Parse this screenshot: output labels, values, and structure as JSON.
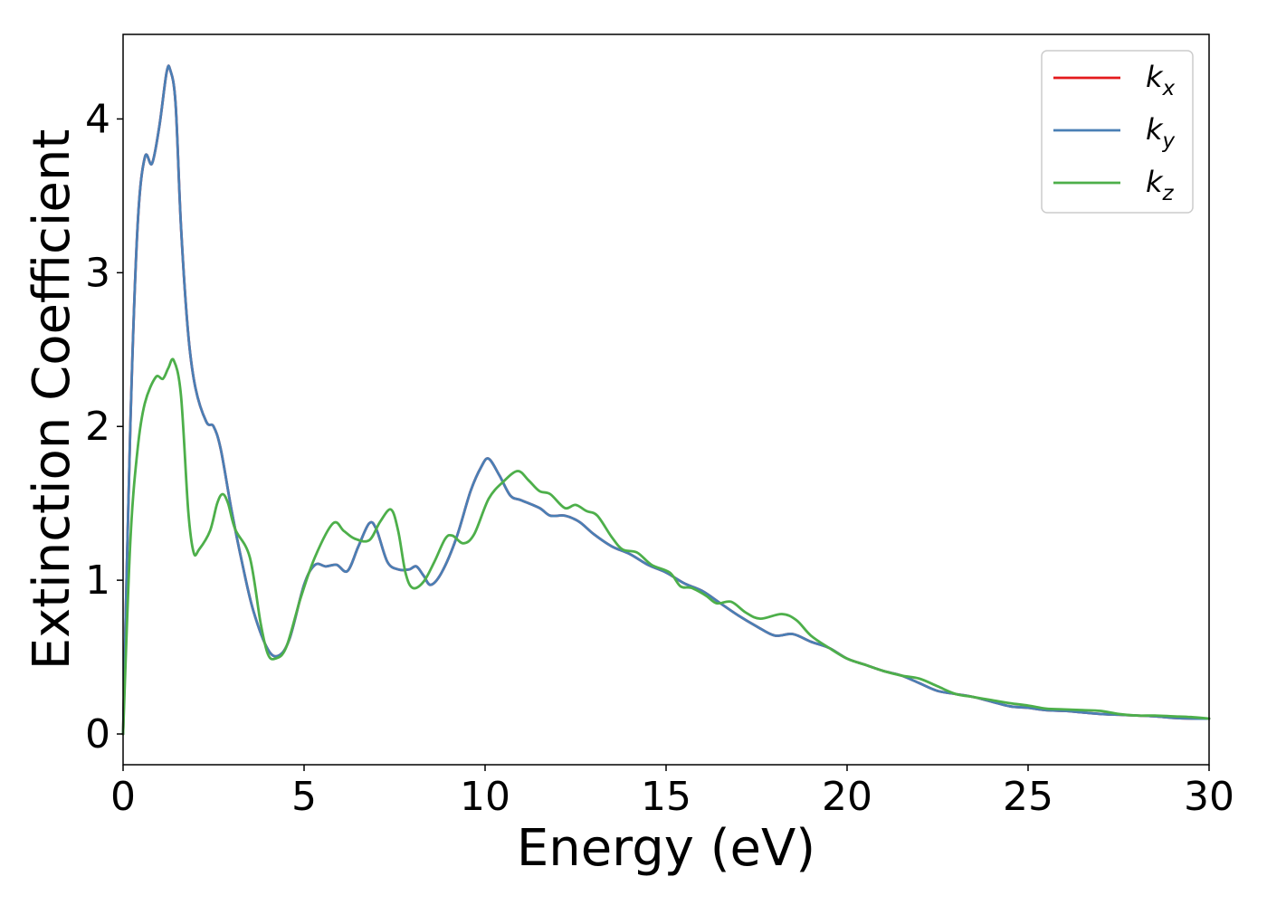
{
  "chart_data": {
    "type": "line",
    "title": "",
    "xlabel": "Energy (eV)",
    "ylabel": "Extinction Coefficient",
    "xlim": [
      0,
      30
    ],
    "ylim": [
      -0.2,
      4.55
    ],
    "xticks": [
      0,
      5,
      10,
      15,
      20,
      25,
      30
    ],
    "yticks": [
      0,
      1,
      2,
      3,
      4
    ],
    "grid": false,
    "legend": "top-right",
    "series": [
      {
        "name": "k_x",
        "base": "k",
        "sub": "x",
        "color": "#e41a1c",
        "points": [
          [
            0,
            0
          ],
          [
            0.2,
            2.0
          ],
          [
            0.4,
            3.3
          ],
          [
            0.6,
            3.75
          ],
          [
            0.8,
            3.71
          ],
          [
            1.0,
            3.95
          ],
          [
            1.2,
            4.3
          ],
          [
            1.3,
            4.32
          ],
          [
            1.45,
            4.1
          ],
          [
            1.6,
            3.3
          ],
          [
            1.8,
            2.6
          ],
          [
            2.0,
            2.25
          ],
          [
            2.3,
            2.03
          ],
          [
            2.5,
            2.0
          ],
          [
            2.7,
            1.85
          ],
          [
            3.0,
            1.45
          ],
          [
            3.3,
            1.1
          ],
          [
            3.6,
            0.8
          ],
          [
            4.0,
            0.55
          ],
          [
            4.3,
            0.51
          ],
          [
            4.6,
            0.62
          ],
          [
            5.0,
            0.97
          ],
          [
            5.3,
            1.1
          ],
          [
            5.6,
            1.09
          ],
          [
            5.9,
            1.1
          ],
          [
            6.2,
            1.06
          ],
          [
            6.5,
            1.22
          ],
          [
            6.8,
            1.37
          ],
          [
            7.0,
            1.33
          ],
          [
            7.3,
            1.12
          ],
          [
            7.6,
            1.07
          ],
          [
            7.9,
            1.07
          ],
          [
            8.1,
            1.09
          ],
          [
            8.3,
            1.03
          ],
          [
            8.5,
            0.97
          ],
          [
            8.8,
            1.05
          ],
          [
            9.2,
            1.27
          ],
          [
            9.6,
            1.58
          ],
          [
            9.9,
            1.74
          ],
          [
            10.1,
            1.79
          ],
          [
            10.4,
            1.68
          ],
          [
            10.7,
            1.55
          ],
          [
            11.0,
            1.52
          ],
          [
            11.5,
            1.47
          ],
          [
            11.8,
            1.42
          ],
          [
            12.2,
            1.42
          ],
          [
            12.6,
            1.38
          ],
          [
            13.0,
            1.3
          ],
          [
            13.5,
            1.22
          ],
          [
            14.0,
            1.17
          ],
          [
            14.5,
            1.1
          ],
          [
            15.0,
            1.05
          ],
          [
            15.5,
            0.98
          ],
          [
            16.0,
            0.93
          ],
          [
            16.5,
            0.85
          ],
          [
            17.0,
            0.77
          ],
          [
            17.5,
            0.7
          ],
          [
            18.0,
            0.64
          ],
          [
            18.5,
            0.65
          ],
          [
            19.0,
            0.6
          ],
          [
            19.5,
            0.56
          ],
          [
            20.0,
            0.49
          ],
          [
            20.5,
            0.45
          ],
          [
            21.0,
            0.41
          ],
          [
            21.5,
            0.38
          ],
          [
            22.0,
            0.33
          ],
          [
            22.5,
            0.28
          ],
          [
            23.0,
            0.26
          ],
          [
            23.5,
            0.24
          ],
          [
            24.0,
            0.21
          ],
          [
            24.5,
            0.18
          ],
          [
            25.0,
            0.17
          ],
          [
            25.5,
            0.155
          ],
          [
            26.0,
            0.15
          ],
          [
            26.5,
            0.14
          ],
          [
            27.0,
            0.13
          ],
          [
            27.5,
            0.125
          ],
          [
            28.0,
            0.12
          ],
          [
            28.5,
            0.115
          ],
          [
            29.0,
            0.105
          ],
          [
            29.5,
            0.1
          ],
          [
            30.0,
            0.1
          ]
        ]
      },
      {
        "name": "k_y",
        "base": "k",
        "sub": "y",
        "color": "#4a7fb5",
        "points": [
          [
            0,
            0
          ],
          [
            0.2,
            2.0
          ],
          [
            0.4,
            3.3
          ],
          [
            0.6,
            3.75
          ],
          [
            0.8,
            3.71
          ],
          [
            1.0,
            3.95
          ],
          [
            1.2,
            4.3
          ],
          [
            1.3,
            4.32
          ],
          [
            1.45,
            4.1
          ],
          [
            1.6,
            3.3
          ],
          [
            1.8,
            2.6
          ],
          [
            2.0,
            2.25
          ],
          [
            2.3,
            2.03
          ],
          [
            2.5,
            2.0
          ],
          [
            2.7,
            1.85
          ],
          [
            3.0,
            1.45
          ],
          [
            3.3,
            1.1
          ],
          [
            3.6,
            0.8
          ],
          [
            4.0,
            0.55
          ],
          [
            4.3,
            0.51
          ],
          [
            4.6,
            0.62
          ],
          [
            5.0,
            0.97
          ],
          [
            5.3,
            1.1
          ],
          [
            5.6,
            1.09
          ],
          [
            5.9,
            1.1
          ],
          [
            6.2,
            1.06
          ],
          [
            6.5,
            1.22
          ],
          [
            6.8,
            1.37
          ],
          [
            7.0,
            1.33
          ],
          [
            7.3,
            1.12
          ],
          [
            7.6,
            1.07
          ],
          [
            7.9,
            1.07
          ],
          [
            8.1,
            1.09
          ],
          [
            8.3,
            1.03
          ],
          [
            8.5,
            0.97
          ],
          [
            8.8,
            1.05
          ],
          [
            9.2,
            1.27
          ],
          [
            9.6,
            1.58
          ],
          [
            9.9,
            1.74
          ],
          [
            10.1,
            1.79
          ],
          [
            10.4,
            1.68
          ],
          [
            10.7,
            1.55
          ],
          [
            11.0,
            1.52
          ],
          [
            11.5,
            1.47
          ],
          [
            11.8,
            1.42
          ],
          [
            12.2,
            1.42
          ],
          [
            12.6,
            1.38
          ],
          [
            13.0,
            1.3
          ],
          [
            13.5,
            1.22
          ],
          [
            14.0,
            1.17
          ],
          [
            14.5,
            1.1
          ],
          [
            15.0,
            1.05
          ],
          [
            15.5,
            0.98
          ],
          [
            16.0,
            0.93
          ],
          [
            16.5,
            0.85
          ],
          [
            17.0,
            0.77
          ],
          [
            17.5,
            0.7
          ],
          [
            18.0,
            0.64
          ],
          [
            18.5,
            0.65
          ],
          [
            19.0,
            0.6
          ],
          [
            19.5,
            0.56
          ],
          [
            20.0,
            0.49
          ],
          [
            20.5,
            0.45
          ],
          [
            21.0,
            0.41
          ],
          [
            21.5,
            0.38
          ],
          [
            22.0,
            0.33
          ],
          [
            22.5,
            0.28
          ],
          [
            23.0,
            0.26
          ],
          [
            23.5,
            0.24
          ],
          [
            24.0,
            0.21
          ],
          [
            24.5,
            0.18
          ],
          [
            25.0,
            0.17
          ],
          [
            25.5,
            0.155
          ],
          [
            26.0,
            0.15
          ],
          [
            26.5,
            0.14
          ],
          [
            27.0,
            0.13
          ],
          [
            27.5,
            0.125
          ],
          [
            28.0,
            0.12
          ],
          [
            28.5,
            0.115
          ],
          [
            29.0,
            0.105
          ],
          [
            29.5,
            0.1
          ],
          [
            30.0,
            0.1
          ]
        ]
      },
      {
        "name": "k_z",
        "base": "k",
        "sub": "z",
        "color": "#4daf4a",
        "points": [
          [
            0,
            0
          ],
          [
            0.2,
            1.25
          ],
          [
            0.4,
            1.85
          ],
          [
            0.6,
            2.15
          ],
          [
            0.9,
            2.32
          ],
          [
            1.1,
            2.31
          ],
          [
            1.25,
            2.38
          ],
          [
            1.4,
            2.43
          ],
          [
            1.6,
            2.2
          ],
          [
            1.8,
            1.45
          ],
          [
            1.95,
            1.18
          ],
          [
            2.1,
            1.2
          ],
          [
            2.4,
            1.32
          ],
          [
            2.6,
            1.5
          ],
          [
            2.75,
            1.56
          ],
          [
            2.9,
            1.5
          ],
          [
            3.1,
            1.33
          ],
          [
            3.5,
            1.15
          ],
          [
            3.8,
            0.72
          ],
          [
            4.0,
            0.52
          ],
          [
            4.2,
            0.49
          ],
          [
            4.5,
            0.56
          ],
          [
            4.9,
            0.88
          ],
          [
            5.3,
            1.15
          ],
          [
            5.8,
            1.37
          ],
          [
            6.1,
            1.32
          ],
          [
            6.4,
            1.27
          ],
          [
            6.8,
            1.26
          ],
          [
            7.1,
            1.38
          ],
          [
            7.4,
            1.46
          ],
          [
            7.6,
            1.32
          ],
          [
            7.8,
            1.05
          ],
          [
            8.0,
            0.95
          ],
          [
            8.3,
            0.99
          ],
          [
            8.6,
            1.12
          ],
          [
            8.9,
            1.27
          ],
          [
            9.1,
            1.29
          ],
          [
            9.4,
            1.24
          ],
          [
            9.7,
            1.3
          ],
          [
            10.1,
            1.53
          ],
          [
            10.5,
            1.64
          ],
          [
            10.9,
            1.71
          ],
          [
            11.2,
            1.65
          ],
          [
            11.5,
            1.58
          ],
          [
            11.8,
            1.56
          ],
          [
            12.2,
            1.47
          ],
          [
            12.5,
            1.49
          ],
          [
            12.8,
            1.45
          ],
          [
            13.1,
            1.42
          ],
          [
            13.5,
            1.28
          ],
          [
            13.8,
            1.2
          ],
          [
            14.2,
            1.18
          ],
          [
            14.6,
            1.1
          ],
          [
            15.1,
            1.05
          ],
          [
            15.4,
            0.96
          ],
          [
            15.7,
            0.95
          ],
          [
            16.1,
            0.9
          ],
          [
            16.4,
            0.85
          ],
          [
            16.8,
            0.86
          ],
          [
            17.2,
            0.79
          ],
          [
            17.6,
            0.75
          ],
          [
            18.2,
            0.78
          ],
          [
            18.6,
            0.74
          ],
          [
            19.0,
            0.64
          ],
          [
            19.5,
            0.56
          ],
          [
            20.0,
            0.49
          ],
          [
            20.5,
            0.45
          ],
          [
            21.0,
            0.41
          ],
          [
            21.5,
            0.38
          ],
          [
            22.0,
            0.36
          ],
          [
            22.5,
            0.31
          ],
          [
            23.0,
            0.26
          ],
          [
            23.5,
            0.24
          ],
          [
            24.0,
            0.22
          ],
          [
            24.5,
            0.2
          ],
          [
            25.0,
            0.185
          ],
          [
            25.5,
            0.165
          ],
          [
            26.0,
            0.16
          ],
          [
            26.5,
            0.155
          ],
          [
            27.0,
            0.15
          ],
          [
            27.5,
            0.13
          ],
          [
            28.0,
            0.12
          ],
          [
            28.5,
            0.12
          ],
          [
            29.0,
            0.115
          ],
          [
            29.5,
            0.11
          ],
          [
            30.0,
            0.1
          ]
        ]
      }
    ]
  }
}
